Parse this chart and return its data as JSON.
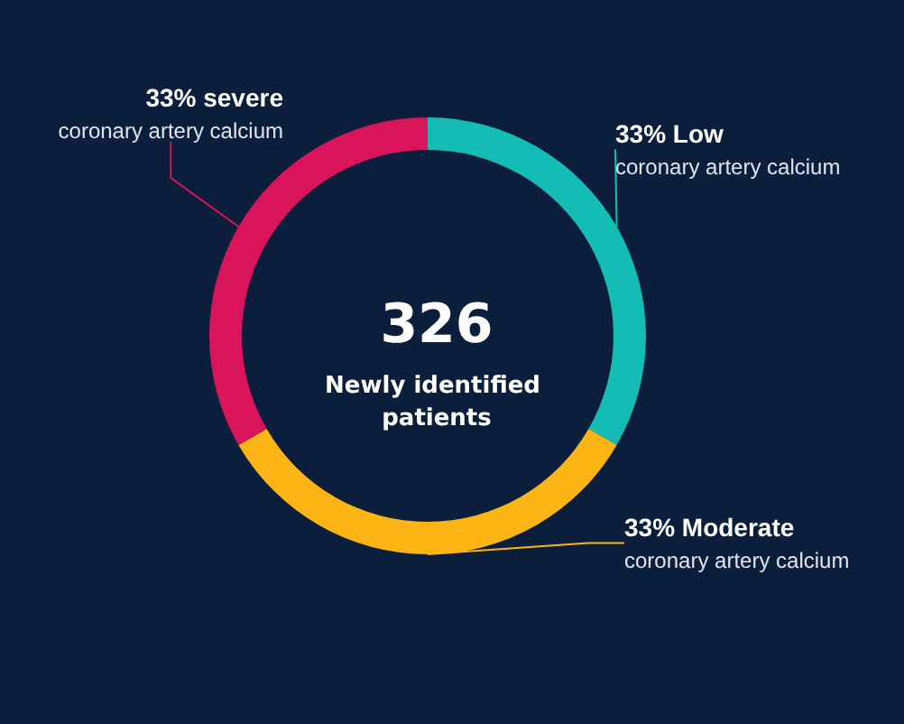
{
  "chart_data": {
    "type": "donut",
    "title": "326",
    "subtitle": "Newly identified patients",
    "categories": [
      "Low coronary artery calcium",
      "Moderate coronary artery calcium",
      "severe coronary artery calcium"
    ],
    "values": [
      33,
      33,
      33
    ],
    "value_labels": [
      "33%",
      "33%",
      "33%"
    ],
    "colors": [
      "#13bcb4",
      "#fdb515",
      "#d9145a"
    ],
    "legend": false
  }
}
